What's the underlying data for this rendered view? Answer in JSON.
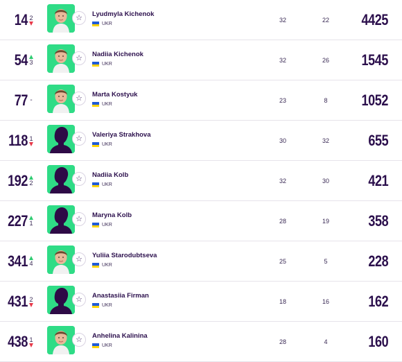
{
  "rankings": [
    {
      "rank": "14",
      "move_dir": "down",
      "move_value": "2",
      "photo": "player-photo",
      "name": "Lyudmyla Kichenok",
      "country": "UKR",
      "stat1": "32",
      "stat2": "22",
      "points": "4425"
    },
    {
      "rank": "54",
      "move_dir": "up",
      "move_value": "3",
      "photo": "player-photo",
      "name": "Nadiia Kichenok",
      "country": "UKR",
      "stat1": "32",
      "stat2": "26",
      "points": "1545"
    },
    {
      "rank": "77",
      "move_dir": "none",
      "move_value": "-",
      "photo": "player-photo",
      "name": "Marta Kostyuk",
      "country": "UKR",
      "stat1": "23",
      "stat2": "8",
      "points": "1052"
    },
    {
      "rank": "118",
      "move_dir": "down",
      "move_value": "1",
      "photo": "silhouette",
      "name": "Valeriya Strakhova",
      "country": "UKR",
      "stat1": "30",
      "stat2": "32",
      "points": "655"
    },
    {
      "rank": "192",
      "move_dir": "up",
      "move_value": "2",
      "photo": "silhouette",
      "name": "Nadiia Kolb",
      "country": "UKR",
      "stat1": "32",
      "stat2": "30",
      "points": "421"
    },
    {
      "rank": "227",
      "move_dir": "up",
      "move_value": "1",
      "photo": "silhouette",
      "name": "Maryna Kolb",
      "country": "UKR",
      "stat1": "28",
      "stat2": "19",
      "points": "358"
    },
    {
      "rank": "341",
      "move_dir": "up",
      "move_value": "4",
      "photo": "player-photo",
      "name": "Yuliia Starodubtseva",
      "country": "UKR",
      "stat1": "25",
      "stat2": "5",
      "points": "228"
    },
    {
      "rank": "431",
      "move_dir": "down",
      "move_value": "2",
      "photo": "silhouette",
      "name": "Anastasiia Firman",
      "country": "UKR",
      "stat1": "18",
      "stat2": "16",
      "points": "162"
    },
    {
      "rank": "438",
      "move_dir": "down",
      "move_value": "1",
      "photo": "player-photo",
      "name": "Anhelina Kalinina",
      "country": "UKR",
      "stat1": "28",
      "stat2": "4",
      "points": "160"
    }
  ],
  "colors": {
    "accent": "#2fdc86",
    "text": "#2b0f4c",
    "up": "#2ecc71",
    "down": "#e8394a",
    "silhouette": "#2e0a46"
  },
  "icons": {
    "favorite": "star-icon",
    "flag": "ukraine-flag-icon"
  }
}
